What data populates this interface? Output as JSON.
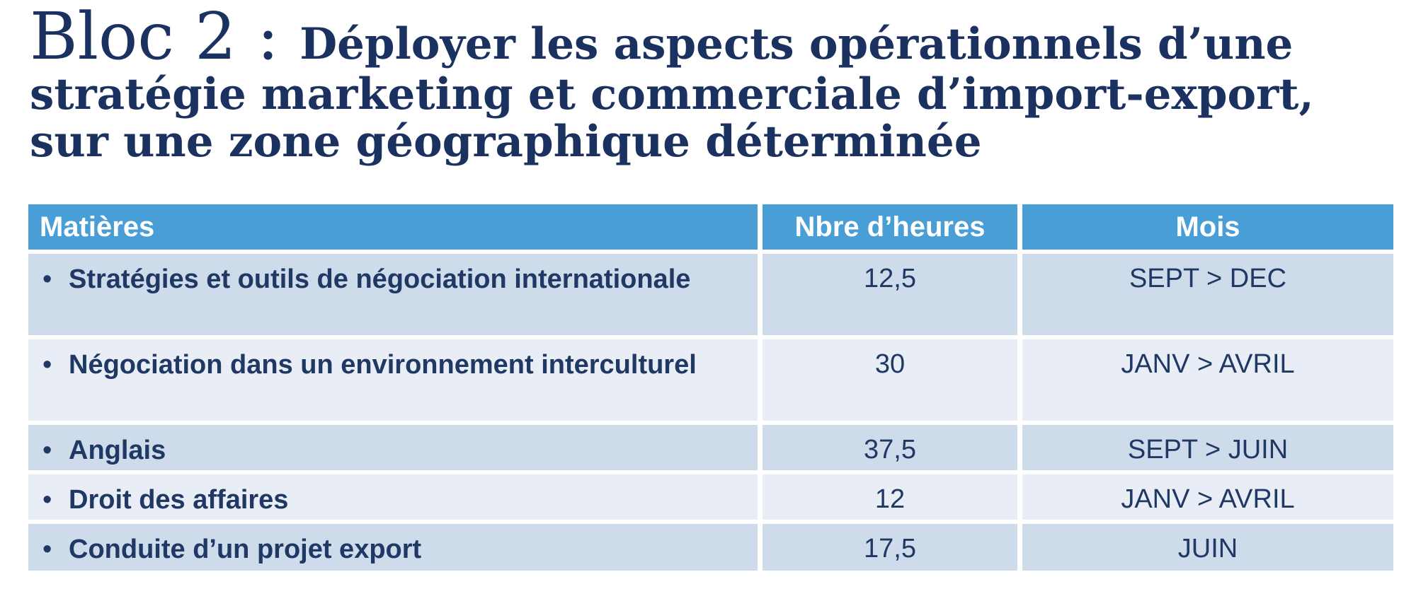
{
  "page": {
    "title_prefix": "Bloc 2 : ",
    "title_rest": "Déployer les aspects opérationnels d’une stratégie marketing et commerciale d’import-export, sur une zone géographique déterminée"
  },
  "colors": {
    "header_bg": "#4a9ed6",
    "row_odd_bg": "#cddbeb",
    "row_even_bg": "#e9eef6",
    "header_text": "#ffffff",
    "body_text": "#1f3864",
    "title_text": "#1b3160"
  },
  "table": {
    "bullet": "•",
    "columns": [
      "Matières",
      "Nbre d’heures",
      "Mois"
    ],
    "rows": [
      {
        "matiere": "Stratégies et outils de négociation internationale",
        "heures": "12,5",
        "mois": "SEPT > DEC"
      },
      {
        "matiere": "Négociation dans un environnement interculturel",
        "heures": "30",
        "mois": "JANV > AVRIL"
      },
      {
        "matiere": "Anglais",
        "heures": "37,5",
        "mois": "SEPT > JUIN"
      },
      {
        "matiere": "Droit des affaires",
        "heures": "12",
        "mois": "JANV > AVRIL"
      },
      {
        "matiere": "Conduite d’un projet export",
        "heures": "17,5",
        "mois": "JUIN"
      }
    ]
  }
}
